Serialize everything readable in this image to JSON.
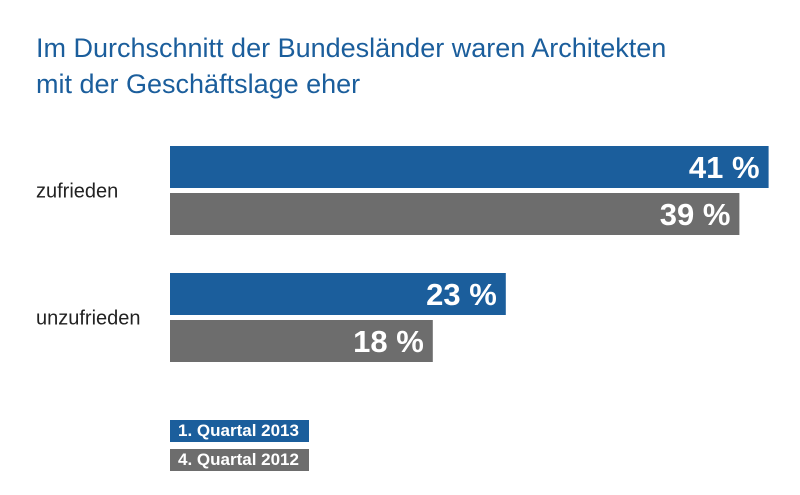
{
  "colors": {
    "title": "#1b5e9c",
    "series1": "#1b5e9c",
    "series2": "#6d6d6d"
  },
  "chart_data": {
    "type": "bar",
    "orientation": "horizontal",
    "title_lines": [
      "Im Durchschnitt der Bundesländer waren Architekten",
      "mit der Geschäftslage eher"
    ],
    "categories": [
      "zufrieden",
      "unzufrieden"
    ],
    "series": [
      {
        "name": "1. Quartal 2013",
        "values": [
          41,
          23
        ],
        "labels": [
          "41 %",
          "23 %"
        ],
        "color": "#1b5e9c"
      },
      {
        "name": "4. Quartal 2012",
        "values": [
          39,
          18
        ],
        "labels": [
          "39 %",
          "18 %"
        ],
        "color": "#6d6d6d"
      }
    ],
    "unit": "%",
    "grid": false,
    "legend_position": "bottom-left"
  }
}
